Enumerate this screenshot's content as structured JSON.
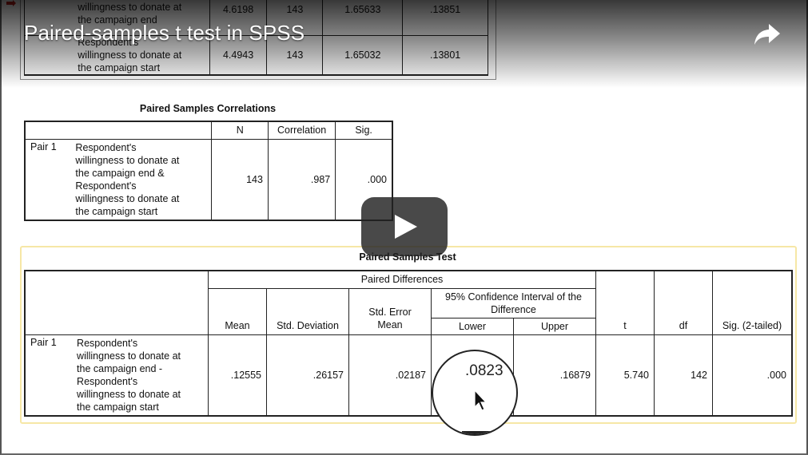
{
  "video": {
    "title": "Paired-samples t test in SPSS",
    "share_icon": "share-arrow-icon",
    "play_icon": "play-icon"
  },
  "stats_table": {
    "rows": [
      {
        "label_lines": [
          "willingness to donate at",
          "the campaign end"
        ],
        "mean": "4.6198",
        "n": "143",
        "std_dev": "1.65633",
        "se_mean": ".13851"
      },
      {
        "label_lines": [
          "Respondent's",
          "willingness to donate at",
          "the campaign start"
        ],
        "mean": "4.4943",
        "n": "143",
        "std_dev": "1.65032",
        "se_mean": ".13801"
      }
    ]
  },
  "correlations": {
    "caption": "Paired Samples Correlations",
    "headers": {
      "n": "N",
      "correlation": "Correlation",
      "sig": "Sig."
    },
    "row": {
      "pair": "Pair 1",
      "label_lines": [
        "Respondent's",
        "willingness to donate at",
        "the campaign end &",
        "Respondent's",
        "willingness to donate at",
        "the campaign start"
      ],
      "n": "143",
      "correlation": ".987",
      "sig": ".000"
    }
  },
  "paired_test": {
    "caption": "Paired Samples Test",
    "headers": {
      "paired_differences": "Paired Differences",
      "mean": "Mean",
      "std_dev": "Std. Deviation",
      "se_mean_1": "Std. Error",
      "se_mean_2": "Mean",
      "ci_1": "95% Confidence Interval of the",
      "ci_2": "Difference",
      "lower": "Lower",
      "upper": "Upper",
      "t": "t",
      "df": "df",
      "sig": "Sig. (2-tailed)"
    },
    "row": {
      "pair": "Pair 1",
      "label_lines": [
        "Respondent's",
        "willingness to donate at",
        "the campaign end -",
        "Respondent's",
        "willingness to donate at",
        "the campaign start"
      ],
      "mean": ".12555",
      "std_dev": ".26157",
      "se_mean": ".02187",
      "lower": ".0823",
      "upper": ".16879",
      "t": "5.740",
      "df": "142",
      "sig": ".000"
    }
  },
  "magnifier": {
    "value": ".0823",
    "cursor_icon": "mouse-pointer-icon"
  }
}
